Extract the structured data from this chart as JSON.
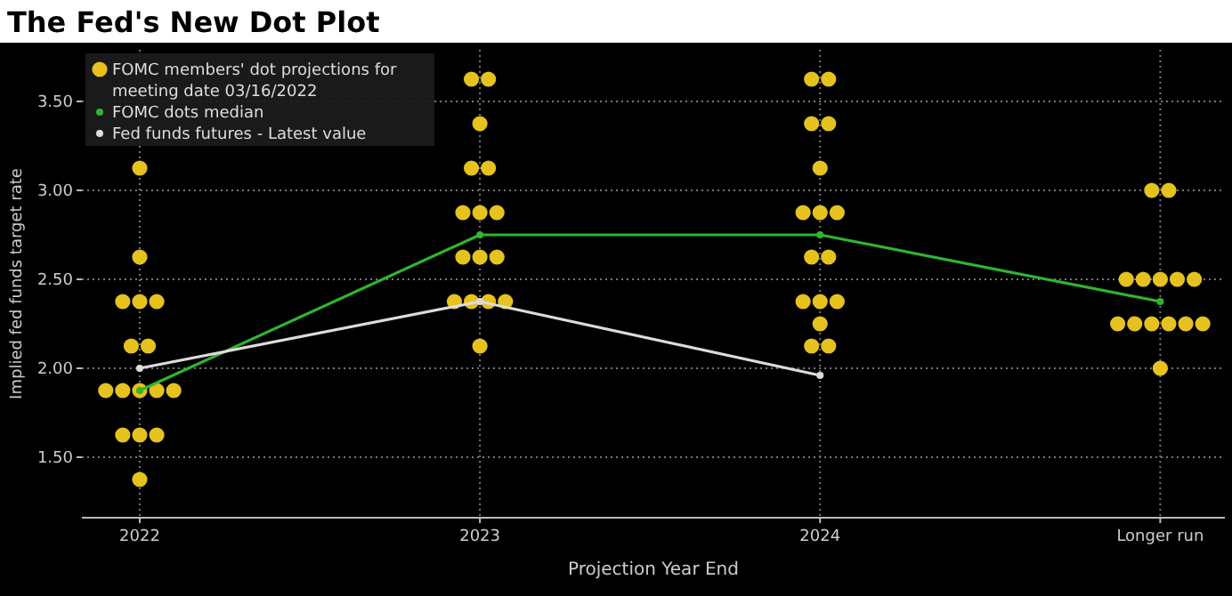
{
  "chart_data": {
    "type": "scatter",
    "title": "The Fed's New Dot Plot",
    "xlabel": "Projection Year End",
    "ylabel": "Implied fed funds target rate",
    "x": [
      2022,
      2023,
      2024,
      2025
    ],
    "series": [
      {
        "name": "FOMC members' dot projections for meeting date 03/16/2022",
        "color": "#e6c21e",
        "x": [
          2022,
          2022,
          2021.95,
          2022,
          2022.05,
          2021.975,
          2022.025,
          2021.9,
          2021.95,
          2022,
          2022.05,
          2022.1,
          2021.95,
          2022,
          2022.05,
          2022,
          2022.975,
          2023.025,
          2023,
          2022.975,
          2023.025,
          2022.95,
          2023,
          2023.05,
          2022.95,
          2023,
          2023.05,
          2022.925,
          2022.975,
          2023.025,
          2023.075,
          2023,
          2023.975,
          2024.025,
          2023.975,
          2024.025,
          2024,
          2023.95,
          2024,
          2024.05,
          2023.975,
          2024.025,
          2023.95,
          2024,
          2024.05,
          2024,
          2023.975,
          2024.025,
          2024.975,
          2025.025,
          2024.9,
          2024.95,
          2025,
          2025.05,
          2025.1,
          2024.875,
          2024.925,
          2024.975,
          2025.025,
          2025.075,
          2025.125,
          2025
        ],
        "values": [
          3.125,
          2.625,
          2.375,
          2.375,
          2.375,
          2.125,
          2.125,
          1.875,
          1.875,
          1.875,
          1.875,
          1.875,
          1.625,
          1.625,
          1.625,
          1.375,
          3.625,
          3.625,
          3.375,
          3.125,
          3.125,
          2.875,
          2.875,
          2.875,
          2.625,
          2.625,
          2.625,
          2.375,
          2.375,
          2.375,
          2.375,
          2.125,
          3.625,
          3.625,
          3.375,
          3.375,
          3.125,
          2.875,
          2.875,
          2.875,
          2.625,
          2.625,
          2.375,
          2.375,
          2.375,
          2.25,
          2.125,
          2.125,
          3.0,
          3.0,
          2.5,
          2.5,
          2.5,
          2.5,
          2.5,
          2.25,
          2.25,
          2.25,
          2.25,
          2.25,
          2.25,
          2.0
        ]
      },
      {
        "name": "FOMC dots median",
        "type": "line",
        "color": "#2fb52f",
        "values": [
          1.875,
          2.75,
          2.75,
          2.375
        ]
      },
      {
        "name": "Fed funds futures - Latest value",
        "type": "line",
        "color": "#dcdcdc",
        "values": [
          2.0,
          2.375,
          1.96,
          null
        ]
      }
    ],
    "xlim": [
      2021.83,
      2025.19
    ],
    "xticks": [
      2022,
      2023,
      2024,
      {
        "value": 2025,
        "label": "Longer run"
      }
    ],
    "ylim": [
      1.16,
      3.79
    ],
    "yticks": [
      {
        "value": 1.5,
        "label": "1.50"
      },
      {
        "value": 2.0,
        "label": "2.00"
      },
      {
        "value": 2.5,
        "label": "2.50"
      },
      {
        "value": 3.0,
        "label": "3.00"
      },
      {
        "value": 3.5,
        "label": "3.50"
      }
    ],
    "grid": true,
    "legend": "top left",
    "marker": "circle"
  }
}
